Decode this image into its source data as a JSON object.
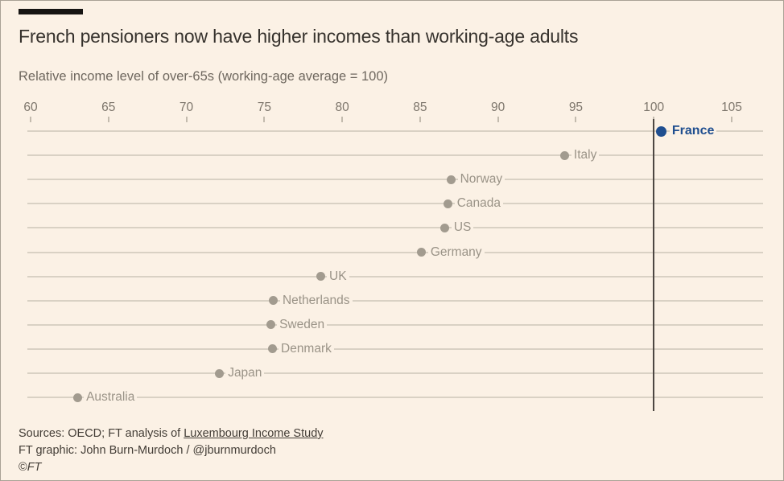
{
  "colors": {
    "background": "#fbf1e5",
    "top_rule": "#161412",
    "title_text": "#36322d",
    "subtitle_text": "#6e675e",
    "axis_text": "#7d766c",
    "gridline": "#d9d1c4",
    "tick_mark": "#c3bbae",
    "dot_default": "#a29b8f",
    "label_default": "#9a9387",
    "highlight_blue": "#1f4e8f",
    "reference_line": "#4d4742",
    "footer_text": "#433d36"
  },
  "header": {
    "title": "French pensioners now have higher incomes than working-age adults",
    "subtitle": "Relative income level of over-65s (working-age average = 100)"
  },
  "chart_data": {
    "type": "scatter",
    "subtype": "horizontal-dot-plot",
    "title": "French pensioners now have higher incomes than working-age adults",
    "xlabel": "Relative income level of over-65s (working-age average = 100)",
    "ylabel": "",
    "x_ticks": [
      60,
      65,
      70,
      75,
      80,
      85,
      90,
      95,
      100,
      105
    ],
    "xlim": [
      60,
      107
    ],
    "grid": "horizontal row lines, on",
    "legend": "none",
    "reference_line_x": 100,
    "series": [
      {
        "name": "France",
        "value": 100.5,
        "highlight": true
      },
      {
        "name": "Italy",
        "value": 94.3,
        "highlight": false
      },
      {
        "name": "Norway",
        "value": 87.0,
        "highlight": false
      },
      {
        "name": "Canada",
        "value": 86.8,
        "highlight": false
      },
      {
        "name": "US",
        "value": 86.6,
        "highlight": false
      },
      {
        "name": "Germany",
        "value": 85.1,
        "highlight": false
      },
      {
        "name": "UK",
        "value": 78.6,
        "highlight": false
      },
      {
        "name": "Netherlands",
        "value": 75.6,
        "highlight": false
      },
      {
        "name": "Sweden",
        "value": 75.4,
        "highlight": false
      },
      {
        "name": "Denmark",
        "value": 75.5,
        "highlight": false
      },
      {
        "name": "Japan",
        "value": 72.1,
        "highlight": false
      },
      {
        "name": "Australia",
        "value": 63.0,
        "highlight": false
      }
    ]
  },
  "footer": {
    "sources_prefix": "Sources: OECD; FT analysis of ",
    "sources_link": "Luxembourg Income Study",
    "credit": "FT graphic: John Burn-Murdoch / @jburnmurdoch",
    "copyright_symbol": "©",
    "copyright_ft": "FT"
  }
}
